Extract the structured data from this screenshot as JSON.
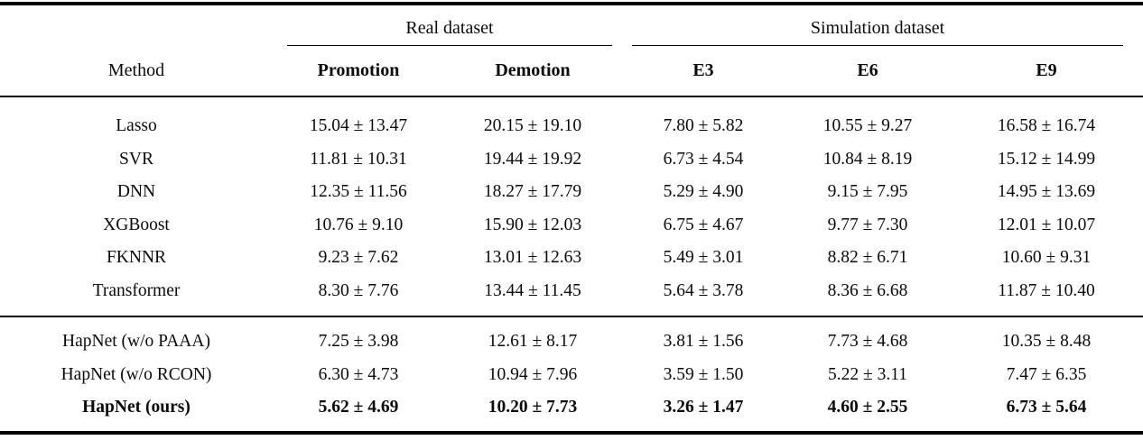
{
  "page": {
    "background": "#ffffff",
    "text_color": "#0b0b0b",
    "rule_color": "#000000"
  },
  "table": {
    "col_groups": [
      {
        "label": "Real dataset",
        "span": 2
      },
      {
        "label": "Simulation dataset",
        "span": 3
      }
    ],
    "columns": [
      "Method",
      "Promotion",
      "Demotion",
      "E3",
      "E6",
      "E9"
    ],
    "sections": [
      {
        "rows": [
          {
            "method": "Lasso",
            "bold": false,
            "values": [
              "15.04 ± 13.47",
              "20.15 ± 19.10",
              "7.80 ± 5.82",
              "10.55 ± 9.27",
              "16.58 ± 16.74"
            ]
          },
          {
            "method": "SVR",
            "bold": false,
            "values": [
              "11.81 ± 10.31",
              "19.44 ± 19.92",
              "6.73 ± 4.54",
              "10.84 ± 8.19",
              "15.12 ± 14.99"
            ]
          },
          {
            "method": "DNN",
            "bold": false,
            "values": [
              "12.35 ± 11.56",
              "18.27 ± 17.79",
              "5.29 ± 4.90",
              "9.15 ± 7.95",
              "14.95 ± 13.69"
            ]
          },
          {
            "method": "XGBoost",
            "bold": false,
            "values": [
              "10.76 ± 9.10",
              "15.90 ± 12.03",
              "6.75 ± 4.67",
              "9.77 ± 7.30",
              "12.01 ± 10.07"
            ]
          },
          {
            "method": "FKNNR",
            "bold": false,
            "values": [
              "9.23 ± 7.62",
              "13.01 ± 12.63",
              "5.49 ± 3.01",
              "8.82 ± 6.71",
              "10.60 ± 9.31"
            ]
          },
          {
            "method": "Transformer",
            "bold": false,
            "values": [
              "8.30 ± 7.76",
              "13.44 ± 11.45",
              "5.64 ± 3.78",
              "8.36 ± 6.68",
              "11.87 ± 10.40"
            ]
          }
        ]
      },
      {
        "rows": [
          {
            "method": "HapNet (w/o PAAA)",
            "bold": false,
            "values": [
              "7.25 ± 3.98",
              "12.61 ± 8.17",
              "3.81 ± 1.56",
              "7.73 ± 4.68",
              "10.35 ± 8.48"
            ]
          },
          {
            "method": "HapNet (w/o RCON)",
            "bold": false,
            "values": [
              "6.30 ± 4.73",
              "10.94 ± 7.96",
              "3.59 ± 1.50",
              "5.22 ± 3.11",
              "7.47 ± 6.35"
            ]
          },
          {
            "method": "HapNet (ours)",
            "bold": true,
            "values": [
              "5.62 ± 4.69",
              "10.20 ± 7.73",
              "3.26 ± 1.47",
              "4.60 ± 2.55",
              "6.73 ± 5.64"
            ]
          }
        ]
      }
    ]
  }
}
